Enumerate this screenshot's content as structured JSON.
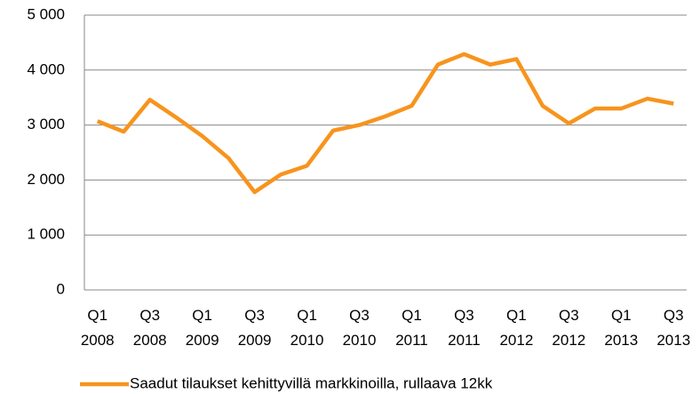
{
  "chart_data": {
    "type": "line",
    "categories": [
      "Q1 2008",
      null,
      "Q3 2008",
      null,
      "Q1 2009",
      null,
      "Q3 2009",
      null,
      "Q1 2010",
      null,
      "Q3 2010",
      null,
      "Q1 2011",
      null,
      "Q3 2011",
      null,
      "Q1 2012",
      null,
      "Q3 2012",
      null,
      "Q1 2013",
      null,
      "Q3 2013"
    ],
    "series": [
      {
        "name": "Saadut tilaukset  kehittyvillä markkinoilla,  rullaava 12kk",
        "color": "#f7941d",
        "values": [
          3070,
          2880,
          3460,
          3140,
          2800,
          2400,
          1780,
          2100,
          2260,
          2900,
          3000,
          3160,
          3350,
          4100,
          4290,
          4100,
          4200,
          3350,
          3030,
          3300,
          3300,
          3480,
          3390
        ]
      }
    ],
    "ylim": [
      0,
      5000
    ],
    "yticks": [
      0,
      {
        "value": 1000,
        "label": "1 000"
      },
      {
        "value": 2000,
        "label": "2 000"
      },
      {
        "value": 3000,
        "label": "3 000"
      },
      {
        "value": 4000,
        "label": "4 000"
      },
      {
        "value": 5000,
        "label": "5 000"
      }
    ],
    "grid": true,
    "legend": "bottom"
  }
}
